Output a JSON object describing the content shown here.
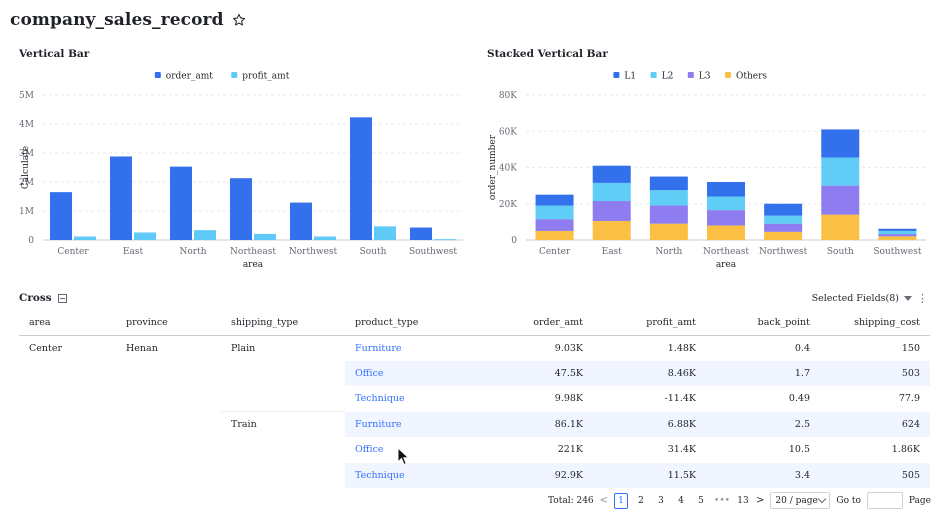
{
  "page_title": "company_sales_record",
  "bar_chart": {
    "title": "Vertical Bar",
    "chart_data": {
      "type": "bar",
      "categories": [
        "Center",
        "East",
        "North",
        "Northeast",
        "Northwest",
        "South",
        "Southwest"
      ],
      "series": [
        {
          "name": "order_amt",
          "values": [
            1650000,
            2880000,
            2530000,
            2130000,
            1290000,
            4230000,
            430000
          ],
          "color": "#3370eb"
        },
        {
          "name": "profit_amt",
          "values": [
            120000,
            260000,
            340000,
            210000,
            120000,
            470000,
            30000
          ],
          "color": "#5fc9f8"
        }
      ],
      "xlabel": "area",
      "ylabel": "Calculate",
      "yticks": [
        "0",
        "1M",
        "2M",
        "3M",
        "4M",
        "5M"
      ],
      "ylim": [
        0,
        5000000
      ],
      "legend": "top-center"
    }
  },
  "stacked_chart": {
    "title": "Stacked Vertical Bar",
    "chart_data": {
      "type": "bar",
      "stacked": true,
      "categories": [
        "Center",
        "East",
        "North",
        "Northeast",
        "Northwest",
        "South",
        "Southwest"
      ],
      "series": [
        {
          "name": "Others",
          "values": [
            5000,
            10500,
            9000,
            8000,
            4500,
            14000,
            2000
          ],
          "color": "#fbbf44"
        },
        {
          "name": "L3",
          "values": [
            6500,
            11000,
            10000,
            8500,
            4500,
            16000,
            1300
          ],
          "color": "#8e7cf0"
        },
        {
          "name": "L2",
          "values": [
            7500,
            10000,
            8500,
            7500,
            4500,
            15500,
            1700
          ],
          "color": "#5fcdf5"
        },
        {
          "name": "L1",
          "values": [
            6000,
            9500,
            7500,
            8000,
            6500,
            15500,
            1200
          ],
          "color": "#3370eb"
        }
      ],
      "legend_order": [
        "L1",
        "L2",
        "L3",
        "Others"
      ],
      "xlabel": "area",
      "ylabel": "order_number",
      "yticks": [
        "0",
        "20K",
        "40K",
        "60K",
        "80K"
      ],
      "ylim": [
        0,
        80000
      ],
      "legend": "top-center"
    }
  },
  "cross": {
    "title": "Cross",
    "selected_fields": "Selected Fields(8)",
    "columns": [
      "area",
      "province",
      "shipping_type",
      "product_type",
      "order_amt",
      "profit_amt",
      "back_point",
      "shipping_cost"
    ],
    "rows": [
      {
        "area": "Center",
        "province": "Henan",
        "shipping_type": "Plain",
        "product_type": "Furniture",
        "order_amt": "9.03K",
        "profit_amt": "1.48K",
        "back_point": "0.4",
        "shipping_cost": "150"
      },
      {
        "area": "",
        "province": "",
        "shipping_type": "",
        "product_type": "Office",
        "order_amt": "47.5K",
        "profit_amt": "8.46K",
        "back_point": "1.7",
        "shipping_cost": "503"
      },
      {
        "area": "",
        "province": "",
        "shipping_type": "",
        "product_type": "Technique",
        "order_amt": "9.98K",
        "profit_amt": "-11.4K",
        "back_point": "0.49",
        "shipping_cost": "77.9"
      },
      {
        "area": "",
        "province": "",
        "shipping_type": "Train",
        "product_type": "Furniture",
        "order_amt": "86.1K",
        "profit_amt": "6.88K",
        "back_point": "2.5",
        "shipping_cost": "624"
      },
      {
        "area": "",
        "province": "",
        "shipping_type": "",
        "product_type": "Office",
        "order_amt": "221K",
        "profit_amt": "31.4K",
        "back_point": "10.5",
        "shipping_cost": "1.86K"
      },
      {
        "area": "",
        "province": "",
        "shipping_type": "",
        "product_type": "Technique",
        "order_amt": "92.9K",
        "profit_amt": "11.5K",
        "back_point": "3.4",
        "shipping_cost": "505"
      }
    ]
  },
  "pagination": {
    "total": "Total: 246",
    "pages": [
      "1",
      "2",
      "3",
      "4",
      "5",
      "•••",
      "13"
    ],
    "current": "1",
    "page_size": "20 / page",
    "goto_label": "Go to",
    "page_label": "Page"
  }
}
